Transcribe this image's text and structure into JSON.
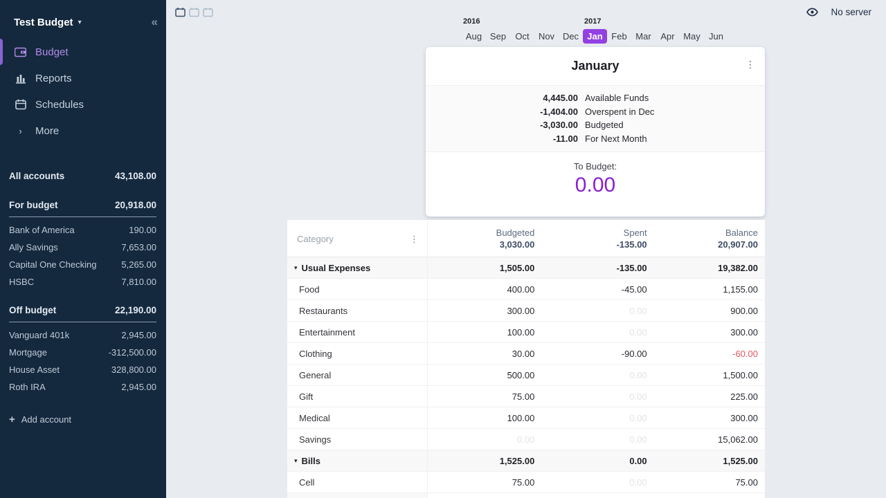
{
  "app": {
    "server_status": "No server"
  },
  "colors": {
    "sidebar_bg": "#14293E",
    "accent_purple": "#9340E3",
    "to_budget_purple": "#8A1FD4",
    "negative_red": "#E0575E",
    "main_bg": "#E8EBEF"
  },
  "sidebar": {
    "title": "Test Budget",
    "nav": [
      {
        "label": "Budget",
        "icon": "wallet-icon",
        "active": true
      },
      {
        "label": "Reports",
        "icon": "bar-chart-icon",
        "active": false
      },
      {
        "label": "Schedules",
        "icon": "calendar-icon",
        "active": false
      },
      {
        "label": "More",
        "icon": "chevron-right-icon",
        "active": false
      }
    ],
    "all_accounts": {
      "label": "All accounts",
      "value": "43,108.00"
    },
    "groups": [
      {
        "label": "For budget",
        "value": "20,918.00",
        "accounts": [
          {
            "name": "Bank of America",
            "value": "190.00"
          },
          {
            "name": "Ally Savings",
            "value": "7,653.00"
          },
          {
            "name": "Capital One Checking",
            "value": "5,265.00"
          },
          {
            "name": "HSBC",
            "value": "7,810.00"
          }
        ]
      },
      {
        "label": "Off budget",
        "value": "22,190.00",
        "accounts": [
          {
            "name": "Vanguard 401k",
            "value": "2,945.00"
          },
          {
            "name": "Mortgage",
            "value": "-312,500.00"
          },
          {
            "name": "House Asset",
            "value": "328,800.00"
          },
          {
            "name": "Roth IRA",
            "value": "2,945.00"
          }
        ]
      }
    ],
    "add_account_label": "Add account"
  },
  "month_strip": {
    "months": [
      "Aug",
      "Sep",
      "Oct",
      "Nov",
      "Dec",
      "Jan",
      "Feb",
      "Mar",
      "Apr",
      "May",
      "Jun"
    ],
    "selected_month": "Jan",
    "years": [
      {
        "label": "2016",
        "month_index": 0
      },
      {
        "label": "2017",
        "month_index": 5
      }
    ],
    "view_icons": [
      "calendar-1-month-icon",
      "calendar-2-months-icon",
      "calendar-3-months-icon"
    ]
  },
  "month_card": {
    "title": "January",
    "summary": [
      {
        "value": "4,445.00",
        "label": "Available Funds"
      },
      {
        "value": "-1,404.00",
        "label": "Overspent in Dec"
      },
      {
        "value": "-3,030.00",
        "label": "Budgeted"
      },
      {
        "value": "-11.00",
        "label": "For Next Month"
      }
    ],
    "to_budget_label": "To Budget:",
    "to_budget_value": "0.00"
  },
  "budget_table": {
    "category_header": "Category",
    "columns": [
      {
        "label": "Budgeted",
        "total": "3,030.00"
      },
      {
        "label": "Spent",
        "total": "-135.00"
      },
      {
        "label": "Balance",
        "total": "20,907.00"
      }
    ],
    "rows": [
      {
        "type": "group",
        "name": "Usual Expenses",
        "budgeted": "1,505.00",
        "spent": "-135.00",
        "balance": "19,382.00"
      },
      {
        "type": "category",
        "name": "Food",
        "budgeted": "400.00",
        "spent": "-45.00",
        "balance": "1,155.00"
      },
      {
        "type": "category",
        "name": "Restaurants",
        "budgeted": "300.00",
        "spent": "0.00",
        "balance": "900.00"
      },
      {
        "type": "category",
        "name": "Entertainment",
        "budgeted": "100.00",
        "spent": "0.00",
        "balance": "300.00"
      },
      {
        "type": "category",
        "name": "Clothing",
        "budgeted": "30.00",
        "spent": "-90.00",
        "balance": "-60.00"
      },
      {
        "type": "category",
        "name": "General",
        "budgeted": "500.00",
        "spent": "0.00",
        "balance": "1,500.00"
      },
      {
        "type": "category",
        "name": "Gift",
        "budgeted": "75.00",
        "spent": "0.00",
        "balance": "225.00"
      },
      {
        "type": "category",
        "name": "Medical",
        "budgeted": "100.00",
        "spent": "0.00",
        "balance": "300.00"
      },
      {
        "type": "category",
        "name": "Savings",
        "budgeted": "0.00",
        "spent": "0.00",
        "balance": "15,062.00"
      },
      {
        "type": "group",
        "name": "Bills",
        "budgeted": "1,525.00",
        "spent": "0.00",
        "balance": "1,525.00"
      },
      {
        "type": "category",
        "name": "Cell",
        "budgeted": "75.00",
        "spent": "0.00",
        "balance": "75.00"
      }
    ]
  }
}
